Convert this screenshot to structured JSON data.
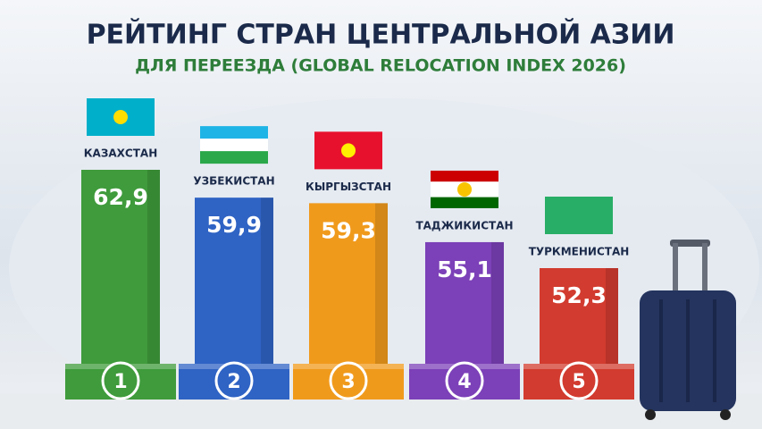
{
  "chart_data": {
    "type": "bar",
    "title": "РЕЙТИНГ СТРАН ЦЕНТРАЛЬНОЙ АЗИИ",
    "subtitle": "ДЛЯ ПЕРЕЕЗДА (GLOBAL RELOCATION INDEX 2026)",
    "categories": [
      "КАЗАХСТАН",
      "УЗБЕКИСТАН",
      "КЫРГЫЗСТАН",
      "ТАДЖИКИСТАН",
      "ТУРКМЕНИСТАН"
    ],
    "values": [
      62.9,
      59.9,
      59.3,
      55.1,
      52.3
    ],
    "value_labels": [
      "62,9",
      "59,9",
      "59,3",
      "55,1",
      "52,3"
    ],
    "ranks": [
      1,
      2,
      3,
      4,
      5
    ],
    "colors": [
      "#3f9b3b",
      "#2f63c4",
      "#f09a1c",
      "#7c40b8",
      "#d23b2f"
    ]
  }
}
